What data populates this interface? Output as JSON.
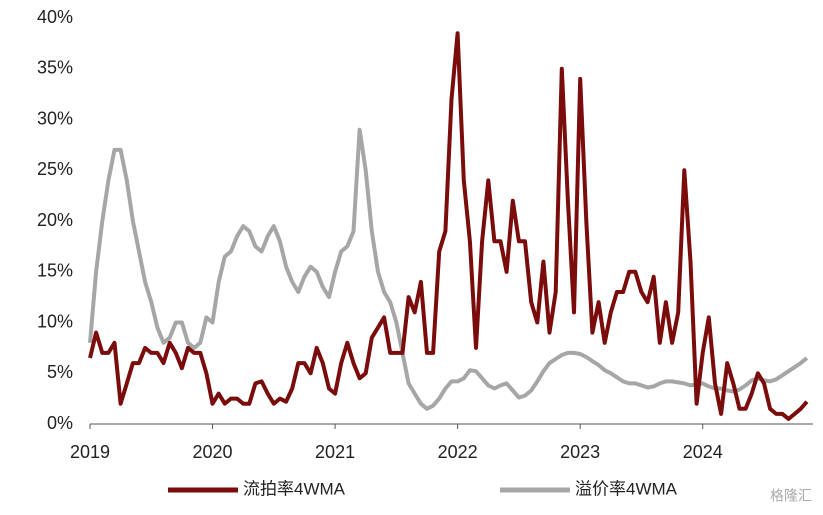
{
  "chart_data": {
    "type": "line",
    "x": [
      2019,
      2019.05,
      2019.1,
      2019.15,
      2019.2,
      2019.25,
      2019.3,
      2019.35,
      2019.4,
      2019.45,
      2019.5,
      2019.55,
      2019.6,
      2019.65,
      2019.7,
      2019.75,
      2019.8,
      2019.85,
      2019.9,
      2019.95,
      2020,
      2020.05,
      2020.1,
      2020.15,
      2020.2,
      2020.25,
      2020.3,
      2020.35,
      2020.4,
      2020.45,
      2020.5,
      2020.55,
      2020.6,
      2020.65,
      2020.7,
      2020.75,
      2020.8,
      2020.85,
      2020.9,
      2020.95,
      2021,
      2021.05,
      2021.1,
      2021.15,
      2021.2,
      2021.25,
      2021.3,
      2021.35,
      2021.4,
      2021.45,
      2021.5,
      2021.55,
      2021.6,
      2021.65,
      2021.7,
      2021.75,
      2021.8,
      2021.85,
      2021.9,
      2021.95,
      2022,
      2022.05,
      2022.1,
      2022.15,
      2022.2,
      2022.25,
      2022.3,
      2022.35,
      2022.4,
      2022.45,
      2022.5,
      2022.55,
      2022.6,
      2022.65,
      2022.7,
      2022.75,
      2022.8,
      2022.85,
      2022.9,
      2022.95,
      2023,
      2023.05,
      2023.1,
      2023.15,
      2023.2,
      2023.25,
      2023.3,
      2023.35,
      2023.4,
      2023.45,
      2023.5,
      2023.55,
      2023.6,
      2023.65,
      2023.7,
      2023.75,
      2023.8,
      2023.85,
      2023.9,
      2023.95,
      2024,
      2024.05,
      2024.1,
      2024.15,
      2024.2,
      2024.25,
      2024.3,
      2024.35,
      2024.4,
      2024.45,
      2024.5,
      2024.55,
      2024.6,
      2024.65,
      2024.7,
      2024.75,
      2024.8,
      2024.85
    ],
    "series": [
      {
        "name": "流拍率4WMA",
        "color": "#7b0c0c",
        "values": [
          6.5,
          9,
          7,
          7,
          8,
          2,
          4,
          6,
          6,
          7.5,
          7,
          7,
          6,
          8,
          7,
          5.5,
          7.5,
          7,
          7,
          5,
          2,
          3,
          2,
          2.5,
          2.5,
          2,
          2,
          4,
          4.2,
          3,
          2,
          2.5,
          2.2,
          3.5,
          6,
          6,
          5,
          7.5,
          6,
          3.5,
          3,
          6,
          8,
          6,
          4.5,
          5,
          8.5,
          9.5,
          10.5,
          7,
          7,
          7,
          12.5,
          11,
          14,
          7,
          7,
          17,
          19,
          32,
          38.5,
          24,
          18,
          7.5,
          18,
          24,
          18,
          18,
          15,
          22,
          18,
          18,
          12,
          10,
          16,
          9,
          13,
          35,
          22,
          11,
          34,
          20,
          9,
          12,
          8,
          11,
          13,
          13,
          15,
          15,
          13,
          12,
          14.5,
          8,
          12,
          8,
          11,
          25,
          16,
          2,
          7,
          10.5,
          4,
          1,
          6,
          4,
          1.5,
          1.5,
          3,
          5,
          4,
          1.5,
          1,
          1,
          0.5,
          1,
          1.5,
          2.2
        ]
      },
      {
        "name": "溢价率4WMA",
        "color": "#a6a6a6",
        "values": [
          8,
          15,
          20,
          24,
          27,
          27,
          24,
          20,
          17,
          14,
          12,
          9.5,
          8,
          8.5,
          10,
          10,
          8,
          7.5,
          8,
          10.5,
          10,
          14,
          16.5,
          17,
          18.5,
          19.5,
          19,
          17.5,
          17,
          18.5,
          19.5,
          18,
          15.5,
          14,
          13,
          14.5,
          15.5,
          15,
          13.5,
          12.5,
          15,
          17,
          17.5,
          19,
          29,
          25,
          19,
          15,
          13,
          12,
          10,
          7,
          4,
          3,
          2,
          1.5,
          1.8,
          2.5,
          3.5,
          4.2,
          4.2,
          4.5,
          5.3,
          5.2,
          4.5,
          3.8,
          3.5,
          3.8,
          4,
          3.3,
          2.6,
          2.8,
          3.3,
          4.2,
          5.2,
          6,
          6.4,
          6.8,
          7,
          7,
          6.9,
          6.6,
          6.2,
          5.8,
          5.3,
          5,
          4.6,
          4.2,
          4,
          4,
          3.8,
          3.6,
          3.7,
          4,
          4.2,
          4.2,
          4.1,
          4,
          3.8,
          3.9,
          4,
          3.7,
          3.5,
          3.5,
          3.3,
          3.2,
          3.4,
          3.8,
          4.3,
          4.5,
          4.3,
          4.2,
          4.4,
          4.8,
          5.2,
          5.6,
          6,
          6.5
        ]
      }
    ],
    "xlim": [
      2019,
      2024.9
    ],
    "xticks": [
      2019,
      2020,
      2021,
      2022,
      2023,
      2024
    ],
    "ylim": [
      0,
      40
    ],
    "yticks": [
      {
        "value": 0,
        "label": "0%"
      },
      {
        "value": 5,
        "label": "5%"
      },
      {
        "value": 10,
        "label": "10%"
      },
      {
        "value": 15,
        "label": "15%"
      },
      {
        "value": 20,
        "label": "20%"
      },
      {
        "value": 25,
        "label": "25%"
      },
      {
        "value": 30,
        "label": "30%"
      },
      {
        "value": 35,
        "label": "35%"
      },
      {
        "value": 40,
        "label": "40%"
      }
    ],
    "grid": false,
    "legend": "bottom",
    "watermark": "格隆汇"
  }
}
